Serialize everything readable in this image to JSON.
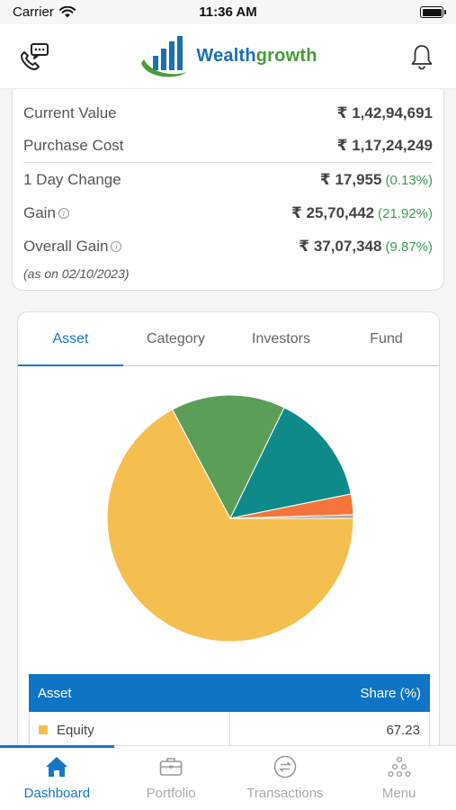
{
  "status": {
    "carrier": "Carrier",
    "time": "11:36 AM"
  },
  "header": {
    "logo_main": "Wealth",
    "logo_accent": "growth"
  },
  "summary": {
    "current_value_label": "Current Value",
    "current_value": "₹ 1,42,94,691",
    "purchase_cost_label": "Purchase Cost",
    "purchase_cost": "₹ 1,17,24,249",
    "day_change_label": "1 Day Change",
    "day_change": "₹ 17,955",
    "day_change_pct": "(0.13%)",
    "gain_label": "Gain",
    "gain": "₹ 25,70,442",
    "gain_pct": "(21.92%)",
    "overall_gain_label": "Overall Gain",
    "overall_gain": "₹ 37,07,348",
    "overall_gain_pct": "(9.87%)",
    "as_on": "(as on 02/10/2023)"
  },
  "tabs": [
    {
      "label": "Asset",
      "active": true
    },
    {
      "label": "Category",
      "active": false
    },
    {
      "label": "Investors",
      "active": false
    },
    {
      "label": "Fund",
      "active": false
    }
  ],
  "chart_data": {
    "type": "pie",
    "slices": [
      {
        "label": "Equity",
        "value": 67.23,
        "color": "#f5bf4f"
      },
      {
        "label": "",
        "value": 15.0,
        "color": "#5a9e58"
      },
      {
        "label": "",
        "value": 14.6,
        "color": "#0e8a8a"
      },
      {
        "label": "",
        "value": 2.7,
        "color": "#f4743b"
      },
      {
        "label": "",
        "value": 0.47,
        "color": "#a8a8a8"
      }
    ]
  },
  "table": {
    "col_asset": "Asset",
    "col_share": "Share (%)",
    "rows": [
      {
        "asset": "Equity",
        "share": "67.23",
        "color": "#f5bf4f"
      }
    ]
  },
  "nav": [
    {
      "label": "Dashboard",
      "active": true
    },
    {
      "label": "Portfolio",
      "active": false
    },
    {
      "label": "Transactions",
      "active": false
    },
    {
      "label": "Menu",
      "active": false
    }
  ]
}
